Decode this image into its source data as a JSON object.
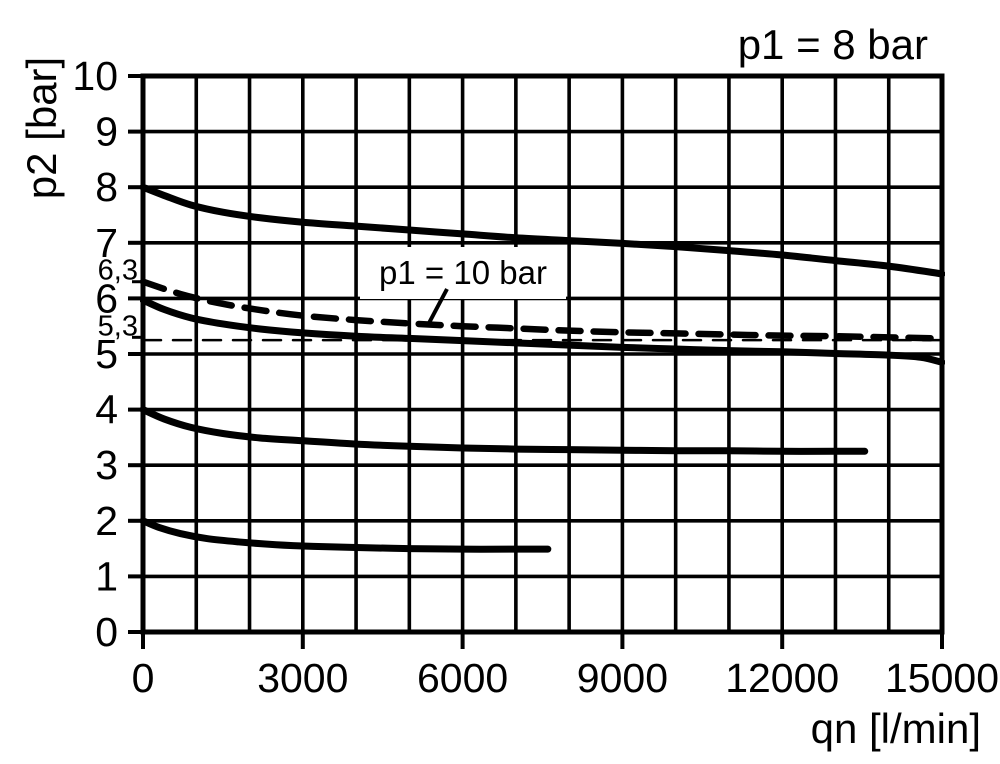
{
  "colors": {
    "ink": "#000000",
    "background": "#ffffff"
  },
  "chart_data": {
    "type": "line",
    "title": "p1 = 8 bar",
    "xlabel": "qn [l/min]",
    "ylabel": "p2 [bar]",
    "xlim": [
      0,
      15000
    ],
    "ylim": [
      0,
      10
    ],
    "x_ticks": [
      0,
      3000,
      6000,
      9000,
      12000,
      15000
    ],
    "y_ticks": [
      0,
      1,
      2,
      3,
      4,
      5,
      6,
      7,
      8,
      9,
      10
    ],
    "y_special_ticks": [
      {
        "label": "6,3",
        "value": 6.3
      },
      {
        "label": "5,3",
        "value": 5.3
      }
    ],
    "grid": {
      "on": true,
      "x_step": 1000,
      "y_step": 1
    },
    "annotation": {
      "text": "p1 = 10 bar",
      "points_to": "curve-p1-10bar"
    },
    "series": [
      {
        "name": "reference-line-5-3-bar",
        "style": "thin-dashed",
        "points": [
          [
            0,
            5.25
          ],
          [
            15000,
            5.25
          ]
        ]
      },
      {
        "name": "curve-p1-10bar",
        "style": "dashed",
        "points": [
          [
            0,
            6.3
          ],
          [
            700,
            6.08
          ],
          [
            1400,
            5.92
          ],
          [
            2200,
            5.79
          ],
          [
            3000,
            5.69
          ],
          [
            4000,
            5.61
          ],
          [
            5000,
            5.55
          ],
          [
            6000,
            5.5
          ],
          [
            7000,
            5.46
          ],
          [
            8000,
            5.42
          ],
          [
            9000,
            5.39
          ],
          [
            10000,
            5.37
          ],
          [
            11000,
            5.35
          ],
          [
            12000,
            5.33
          ],
          [
            13000,
            5.32
          ],
          [
            14000,
            5.3
          ],
          [
            15000,
            5.28
          ]
        ]
      },
      {
        "name": "curve-set-8bar",
        "style": "solid",
        "points": [
          [
            0,
            8.0
          ],
          [
            400,
            7.85
          ],
          [
            900,
            7.68
          ],
          [
            1500,
            7.55
          ],
          [
            2200,
            7.45
          ],
          [
            3000,
            7.37
          ],
          [
            4000,
            7.3
          ],
          [
            5000,
            7.23
          ],
          [
            6000,
            7.16
          ],
          [
            7000,
            7.09
          ],
          [
            8000,
            7.04
          ],
          [
            9000,
            6.99
          ],
          [
            10000,
            6.93
          ],
          [
            11000,
            6.86
          ],
          [
            12000,
            6.78
          ],
          [
            13000,
            6.68
          ],
          [
            14000,
            6.58
          ],
          [
            15000,
            6.44
          ]
        ]
      },
      {
        "name": "curve-set-6bar",
        "style": "solid",
        "points": [
          [
            0,
            5.97
          ],
          [
            400,
            5.8
          ],
          [
            900,
            5.65
          ],
          [
            1500,
            5.54
          ],
          [
            2200,
            5.45
          ],
          [
            3000,
            5.38
          ],
          [
            4000,
            5.32
          ],
          [
            5000,
            5.28
          ],
          [
            6000,
            5.24
          ],
          [
            7000,
            5.2
          ],
          [
            8000,
            5.16
          ],
          [
            9000,
            5.12
          ],
          [
            10000,
            5.09
          ],
          [
            11000,
            5.06
          ],
          [
            12000,
            5.04
          ],
          [
            13000,
            5.01
          ],
          [
            14000,
            4.98
          ],
          [
            14600,
            4.94
          ],
          [
            15000,
            4.85
          ]
        ]
      },
      {
        "name": "curve-set-4bar",
        "style": "solid",
        "points": [
          [
            0,
            4.0
          ],
          [
            400,
            3.83
          ],
          [
            900,
            3.68
          ],
          [
            1500,
            3.57
          ],
          [
            2200,
            3.49
          ],
          [
            3000,
            3.44
          ],
          [
            4000,
            3.38
          ],
          [
            5000,
            3.34
          ],
          [
            6000,
            3.31
          ],
          [
            7000,
            3.29
          ],
          [
            8000,
            3.28
          ],
          [
            9000,
            3.27
          ],
          [
            10000,
            3.26
          ],
          [
            11000,
            3.26
          ],
          [
            12000,
            3.25
          ],
          [
            13000,
            3.25
          ],
          [
            13550,
            3.25
          ]
        ]
      },
      {
        "name": "curve-set-2bar",
        "style": "solid",
        "points": [
          [
            0,
            2.0
          ],
          [
            300,
            1.88
          ],
          [
            700,
            1.77
          ],
          [
            1200,
            1.68
          ],
          [
            1800,
            1.62
          ],
          [
            2500,
            1.57
          ],
          [
            3200,
            1.54
          ],
          [
            4000,
            1.52
          ],
          [
            5000,
            1.5
          ],
          [
            6000,
            1.49
          ],
          [
            7000,
            1.49
          ],
          [
            7600,
            1.49
          ]
        ]
      }
    ]
  }
}
